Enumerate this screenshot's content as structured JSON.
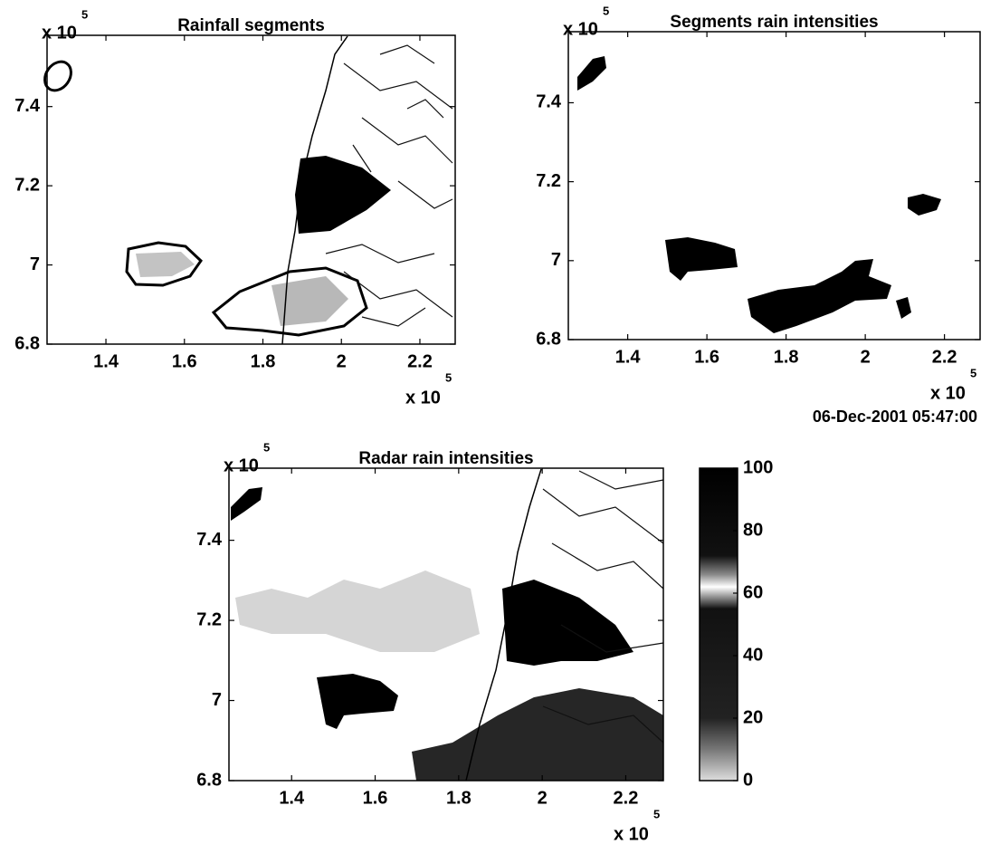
{
  "chart_data": [
    {
      "type": "map",
      "title": "Rainfall segments",
      "xlim": [
        1.25,
        2.29
      ],
      "ylim": [
        6.8,
        7.58
      ],
      "xticks": [
        1.4,
        1.6,
        1.8,
        2,
        2.2
      ],
      "yticks": [
        6.8,
        7,
        7.2,
        7.4
      ],
      "x_multiplier": "x 10",
      "x_multiplier_exponent": 5,
      "y_multiplier": "x 10",
      "y_multiplier_exponent": 5
    },
    {
      "type": "map",
      "title": "Segments rain intensities",
      "xlim": [
        1.25,
        2.29
      ],
      "ylim": [
        6.8,
        7.58
      ],
      "xticks": [
        1.4,
        1.6,
        1.8,
        2,
        2.2
      ],
      "yticks": [
        6.8,
        7,
        7.2,
        7.4
      ],
      "x_multiplier": "x 10",
      "x_multiplier_exponent": 5,
      "y_multiplier": "x 10",
      "y_multiplier_exponent": 5,
      "annotation": "06-Dec-2001 05:47:00"
    },
    {
      "type": "map",
      "title": "Radar rain intensities",
      "xlim": [
        1.25,
        2.29
      ],
      "ylim": [
        6.8,
        7.58
      ],
      "xticks": [
        1.4,
        1.6,
        1.8,
        2,
        2.2
      ],
      "yticks": [
        6.8,
        7,
        7.2,
        7.4
      ],
      "x_multiplier": "x 10",
      "x_multiplier_exponent": 5,
      "y_multiplier": "x 10",
      "y_multiplier_exponent": 5,
      "colorbar": {
        "lim": [
          0,
          100
        ],
        "ticks": [
          0,
          20,
          40,
          60,
          80,
          100
        ]
      }
    }
  ]
}
